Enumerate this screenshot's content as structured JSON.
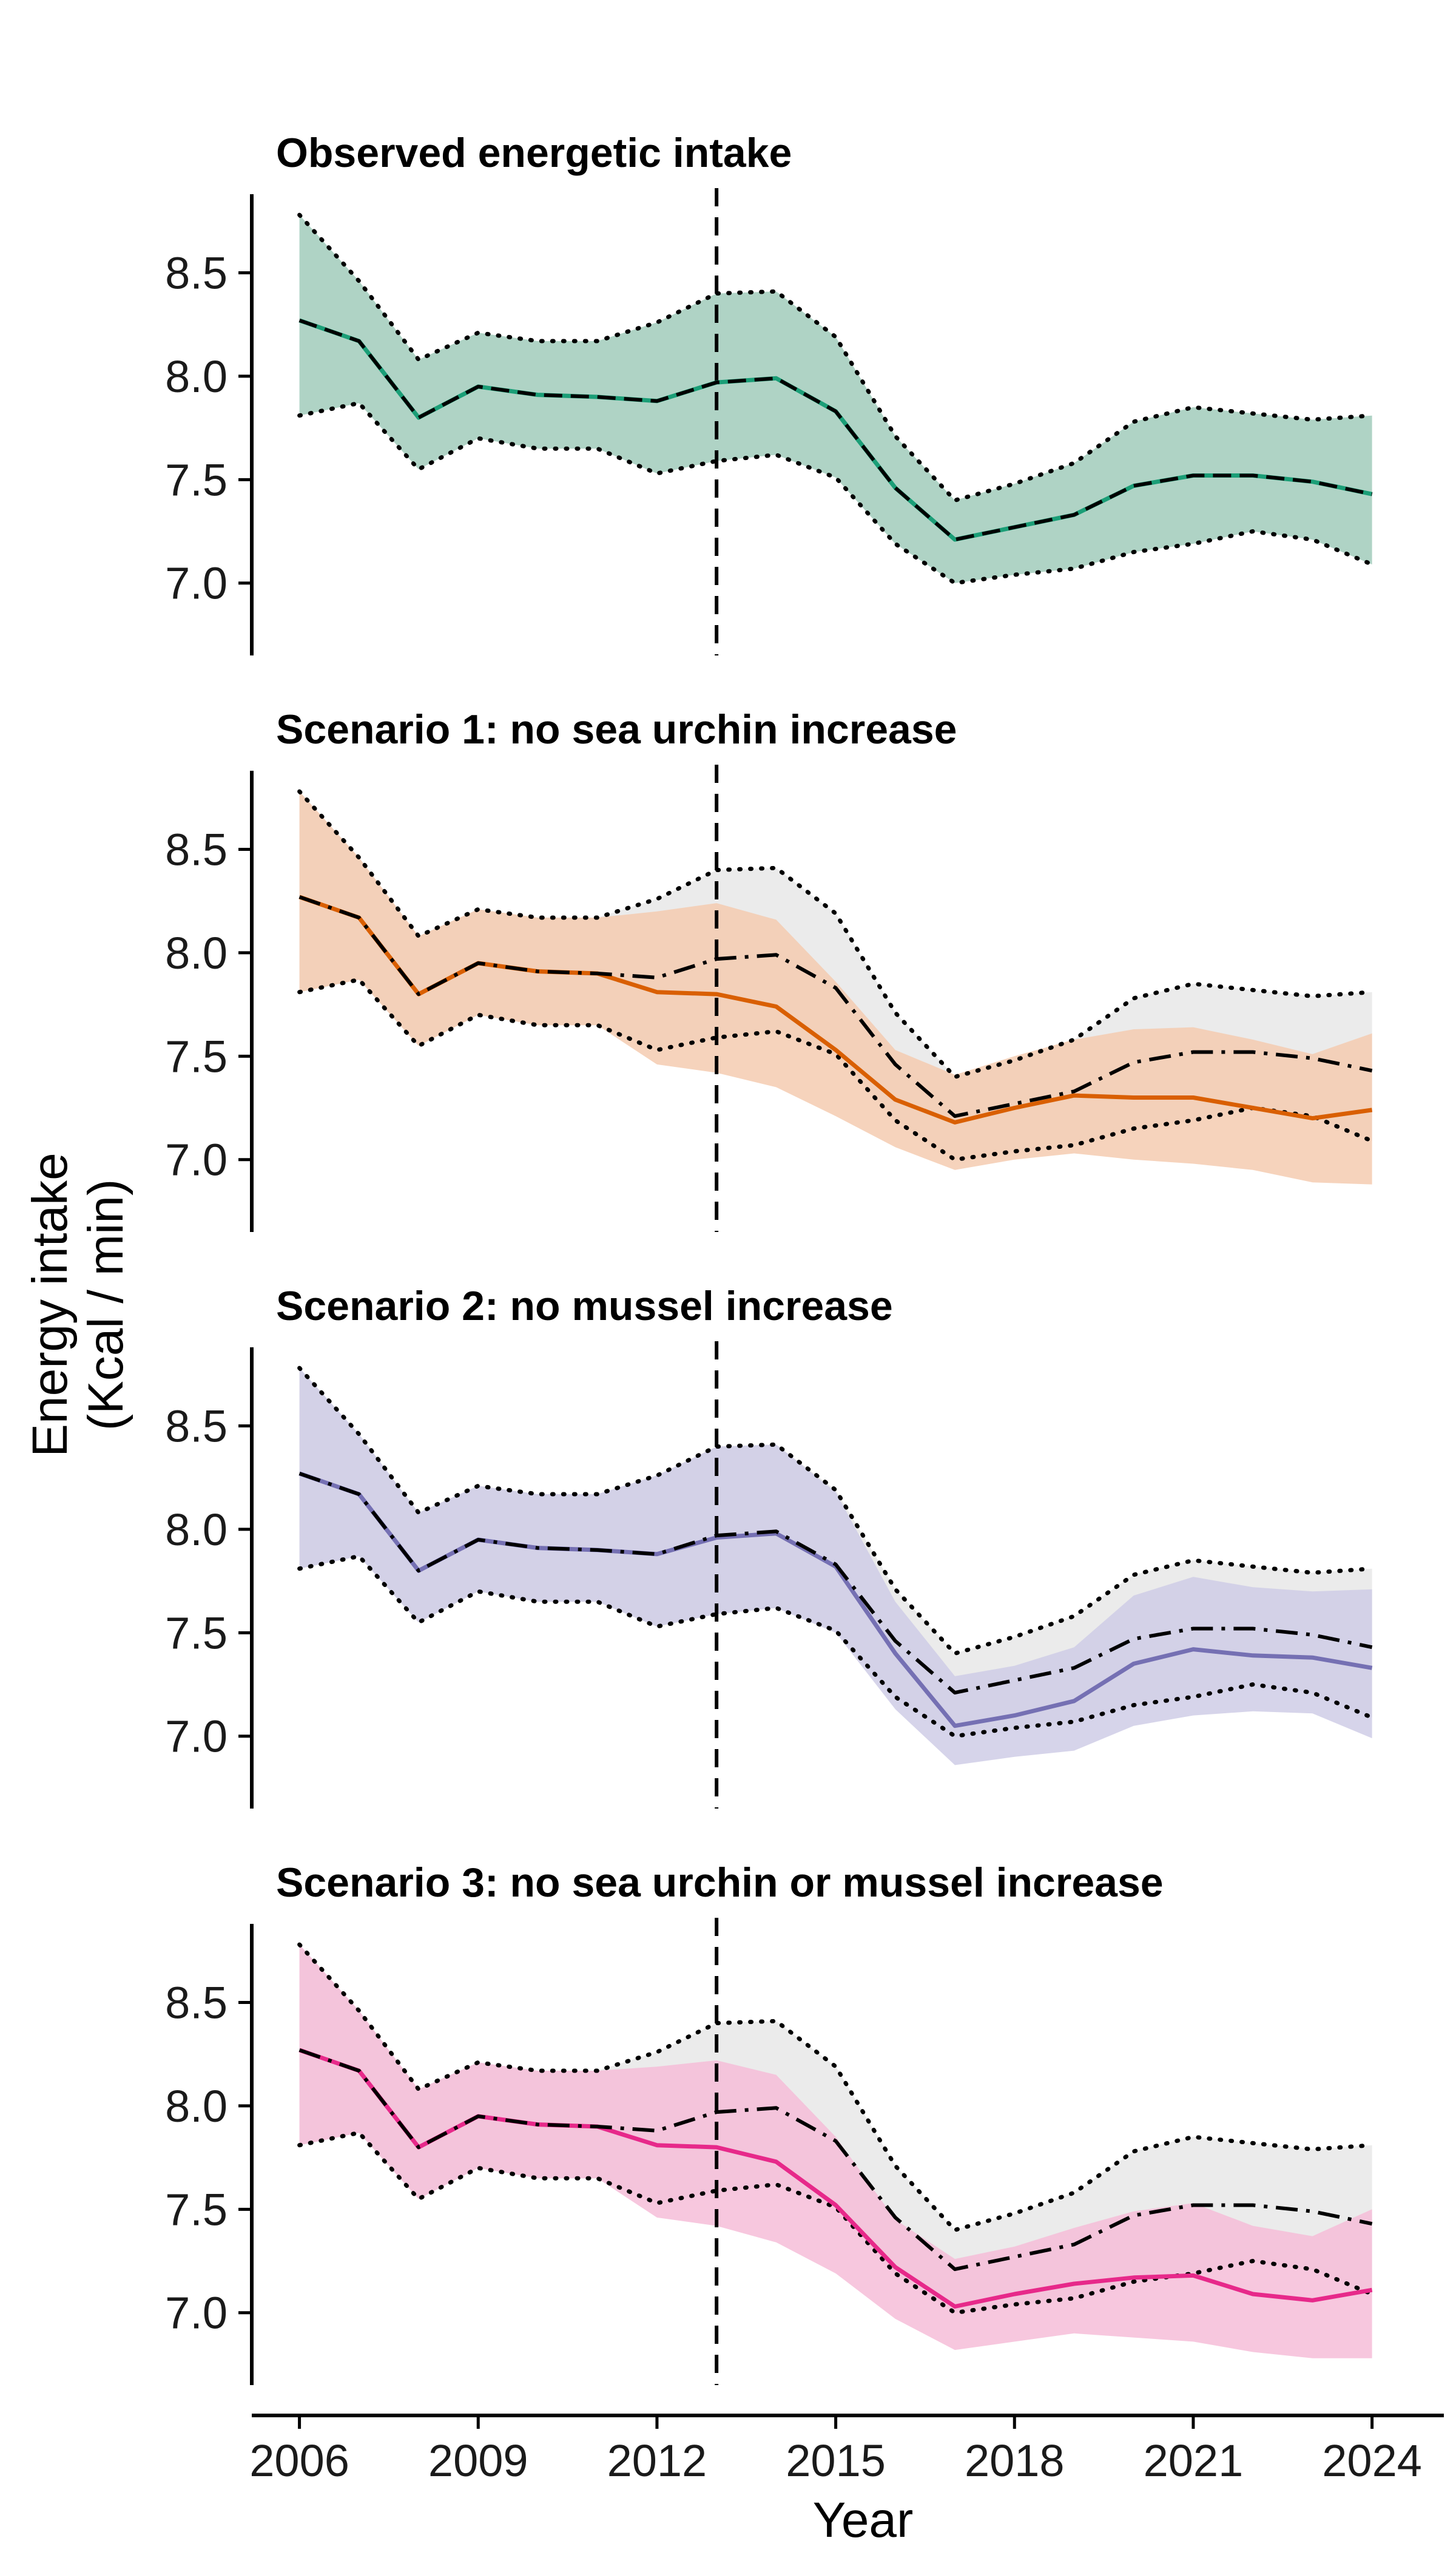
{
  "shared": {
    "ylabel": "Energy intake\n(Kcal / min)",
    "xlabel": "Year",
    "x_ticks": [
      2006,
      2009,
      2012,
      2015,
      2018,
      2021,
      2024
    ],
    "y_ticks": [
      7.0,
      7.5,
      8.0,
      8.5
    ],
    "ylim": [
      6.65,
      8.88
    ],
    "xlim": [
      2005.2,
      2024.9
    ],
    "vline_x": 2013,
    "colors": {
      "observed": "#1b9e77",
      "observed_fill": "#afd3c5",
      "s1": "#d95f02",
      "s1_fill": "#f4cbb0",
      "s2": "#7570b3",
      "s2_fill": "#cfcde6",
      "s3": "#e7298a",
      "s3_fill": "#f6bdd8",
      "ref_fill": "#ebebeb"
    }
  },
  "chart_data": [
    {
      "type": "line",
      "title": "Observed energetic intake",
      "x": [
        2006,
        2007,
        2008,
        2009,
        2010,
        2011,
        2012,
        2013,
        2014,
        2015,
        2016,
        2017,
        2018,
        2019,
        2020,
        2021,
        2022,
        2023,
        2024
      ],
      "series": [
        {
          "key": "observed",
          "values": [
            8.27,
            8.17,
            7.8,
            7.95,
            7.91,
            7.9,
            7.88,
            7.97,
            7.99,
            7.83,
            7.46,
            7.21,
            7.27,
            7.33,
            7.47,
            7.52,
            7.52,
            7.49,
            7.43
          ],
          "lower": [
            7.81,
            7.87,
            7.55,
            7.7,
            7.65,
            7.65,
            7.53,
            7.59,
            7.62,
            7.51,
            7.19,
            7.0,
            7.04,
            7.07,
            7.15,
            7.19,
            7.25,
            7.21,
            7.09
          ],
          "upper": [
            8.78,
            8.46,
            8.08,
            8.21,
            8.17,
            8.17,
            8.26,
            8.4,
            8.41,
            8.19,
            7.71,
            7.4,
            7.48,
            7.58,
            7.78,
            7.85,
            7.82,
            7.79,
            7.81
          ]
        }
      ]
    },
    {
      "type": "line",
      "title": "Scenario 1: no sea urchin increase",
      "x": [
        2006,
        2007,
        2008,
        2009,
        2010,
        2011,
        2012,
        2013,
        2014,
        2015,
        2016,
        2017,
        2018,
        2019,
        2020,
        2021,
        2022,
        2023,
        2024
      ],
      "series": [
        {
          "key": "s1",
          "values": [
            8.27,
            8.17,
            7.8,
            7.95,
            7.91,
            7.9,
            7.81,
            7.8,
            7.74,
            7.53,
            7.29,
            7.18,
            7.25,
            7.31,
            7.3,
            7.3,
            7.25,
            7.2,
            7.24
          ],
          "lower": [
            7.81,
            7.87,
            7.55,
            7.7,
            7.65,
            7.65,
            7.46,
            7.42,
            7.35,
            7.21,
            7.06,
            6.95,
            7.0,
            7.03,
            7.0,
            6.98,
            6.95,
            6.89,
            6.88
          ],
          "upper": [
            8.78,
            8.46,
            8.08,
            8.21,
            8.17,
            8.17,
            8.2,
            8.24,
            8.16,
            7.86,
            7.53,
            7.41,
            7.5,
            7.58,
            7.63,
            7.64,
            7.58,
            7.51,
            7.61
          ]
        }
      ]
    },
    {
      "type": "line",
      "title": "Scenario 2: no mussel increase",
      "x": [
        2006,
        2007,
        2008,
        2009,
        2010,
        2011,
        2012,
        2013,
        2014,
        2015,
        2016,
        2017,
        2018,
        2019,
        2020,
        2021,
        2022,
        2023,
        2024
      ],
      "series": [
        {
          "key": "s2",
          "values": [
            8.27,
            8.17,
            7.8,
            7.95,
            7.91,
            7.9,
            7.88,
            7.96,
            7.98,
            7.82,
            7.4,
            7.05,
            7.1,
            7.17,
            7.35,
            7.42,
            7.39,
            7.38,
            7.33
          ],
          "lower": [
            7.81,
            7.87,
            7.55,
            7.7,
            7.65,
            7.65,
            7.53,
            7.59,
            7.62,
            7.5,
            7.13,
            6.86,
            6.9,
            6.93,
            7.05,
            7.1,
            7.12,
            7.11,
            6.99
          ],
          "upper": [
            8.78,
            8.46,
            8.08,
            8.21,
            8.17,
            8.17,
            8.26,
            8.4,
            8.41,
            8.18,
            7.65,
            7.29,
            7.34,
            7.43,
            7.68,
            7.77,
            7.72,
            7.7,
            7.71
          ]
        }
      ]
    },
    {
      "type": "line",
      "title": "Scenario 3: no sea urchin or mussel increase",
      "x": [
        2006,
        2007,
        2008,
        2009,
        2010,
        2011,
        2012,
        2013,
        2014,
        2015,
        2016,
        2017,
        2018,
        2019,
        2020,
        2021,
        2022,
        2023,
        2024
      ],
      "series": [
        {
          "key": "s3",
          "values": [
            8.27,
            8.17,
            7.8,
            7.95,
            7.91,
            7.9,
            7.81,
            7.8,
            7.73,
            7.52,
            7.22,
            7.03,
            7.09,
            7.14,
            7.17,
            7.18,
            7.09,
            7.06,
            7.11
          ],
          "lower": [
            7.81,
            7.87,
            7.55,
            7.7,
            7.65,
            7.65,
            7.46,
            7.42,
            7.34,
            7.19,
            6.97,
            6.82,
            6.86,
            6.9,
            6.88,
            6.86,
            6.81,
            6.78,
            6.78
          ],
          "upper": [
            8.78,
            8.46,
            8.08,
            8.21,
            8.17,
            8.17,
            8.19,
            8.22,
            8.15,
            7.85,
            7.45,
            7.26,
            7.32,
            7.41,
            7.49,
            7.53,
            7.42,
            7.37,
            7.5
          ]
        }
      ]
    }
  ],
  "reference": {
    "description_source": "observed",
    "note": ""
  }
}
